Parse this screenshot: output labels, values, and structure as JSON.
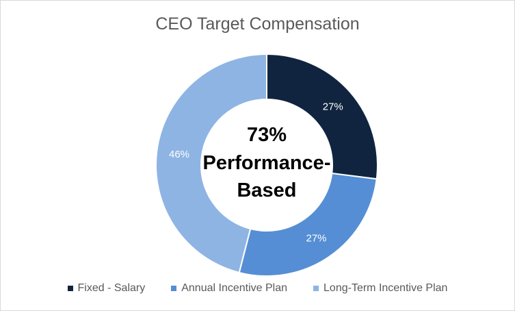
{
  "chart_data": {
    "type": "pie",
    "variant": "donut",
    "title": "CEO Target Compensation",
    "center_label": {
      "line1": "73%",
      "line2": "Performance-",
      "line3": "Based"
    },
    "slices": [
      {
        "name": "Fixed - Salary",
        "value": 27,
        "label": "27%",
        "color": "#10243f",
        "label_color": "#ffffff"
      },
      {
        "name": "Annual Incentive Plan",
        "value": 27,
        "label": "27%",
        "color": "#558ed5",
        "label_color": "#ffffff"
      },
      {
        "name": "Long-Term Incentive Plan",
        "value": 46,
        "label": "46%",
        "color": "#8eb4e3",
        "label_color": "#ffffff"
      }
    ],
    "legend_position": "bottom"
  }
}
